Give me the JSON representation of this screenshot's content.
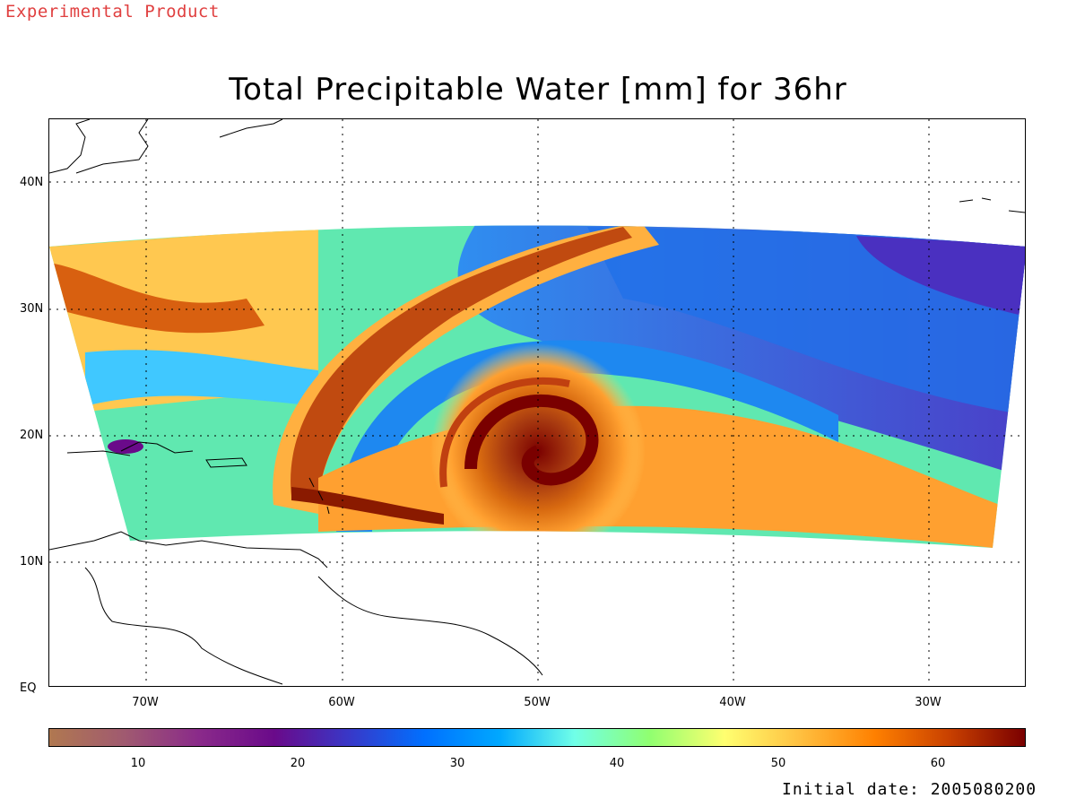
{
  "watermark": "Experimental Product",
  "title": "Total Precipitable Water [mm] for 36hr",
  "map": {
    "lat_labels": [
      "40N",
      "30N",
      "20N",
      "10N",
      "EQ"
    ],
    "lon_labels": [
      "70W",
      "60W",
      "50W",
      "40W",
      "30W"
    ],
    "lon_range": [
      -75,
      -25
    ],
    "lat_range": [
      0,
      45
    ],
    "grid": "dotted",
    "storm_center": {
      "lon": -50,
      "lat": 19
    }
  },
  "colorbar": {
    "ticks": [
      "10",
      "20",
      "30",
      "40",
      "50",
      "60"
    ],
    "range": [
      5,
      65
    ],
    "colors": [
      "#b07850",
      "#a05a70",
      "#8a2a8a",
      "#6a0a8a",
      "#3838c8",
      "#0070ff",
      "#00a8ff",
      "#70ffe8",
      "#90ff70",
      "#ffff70",
      "#ffc040",
      "#ff8000",
      "#c84000",
      "#7a0000"
    ]
  },
  "initial_date": "Initial date: 2005080200"
}
